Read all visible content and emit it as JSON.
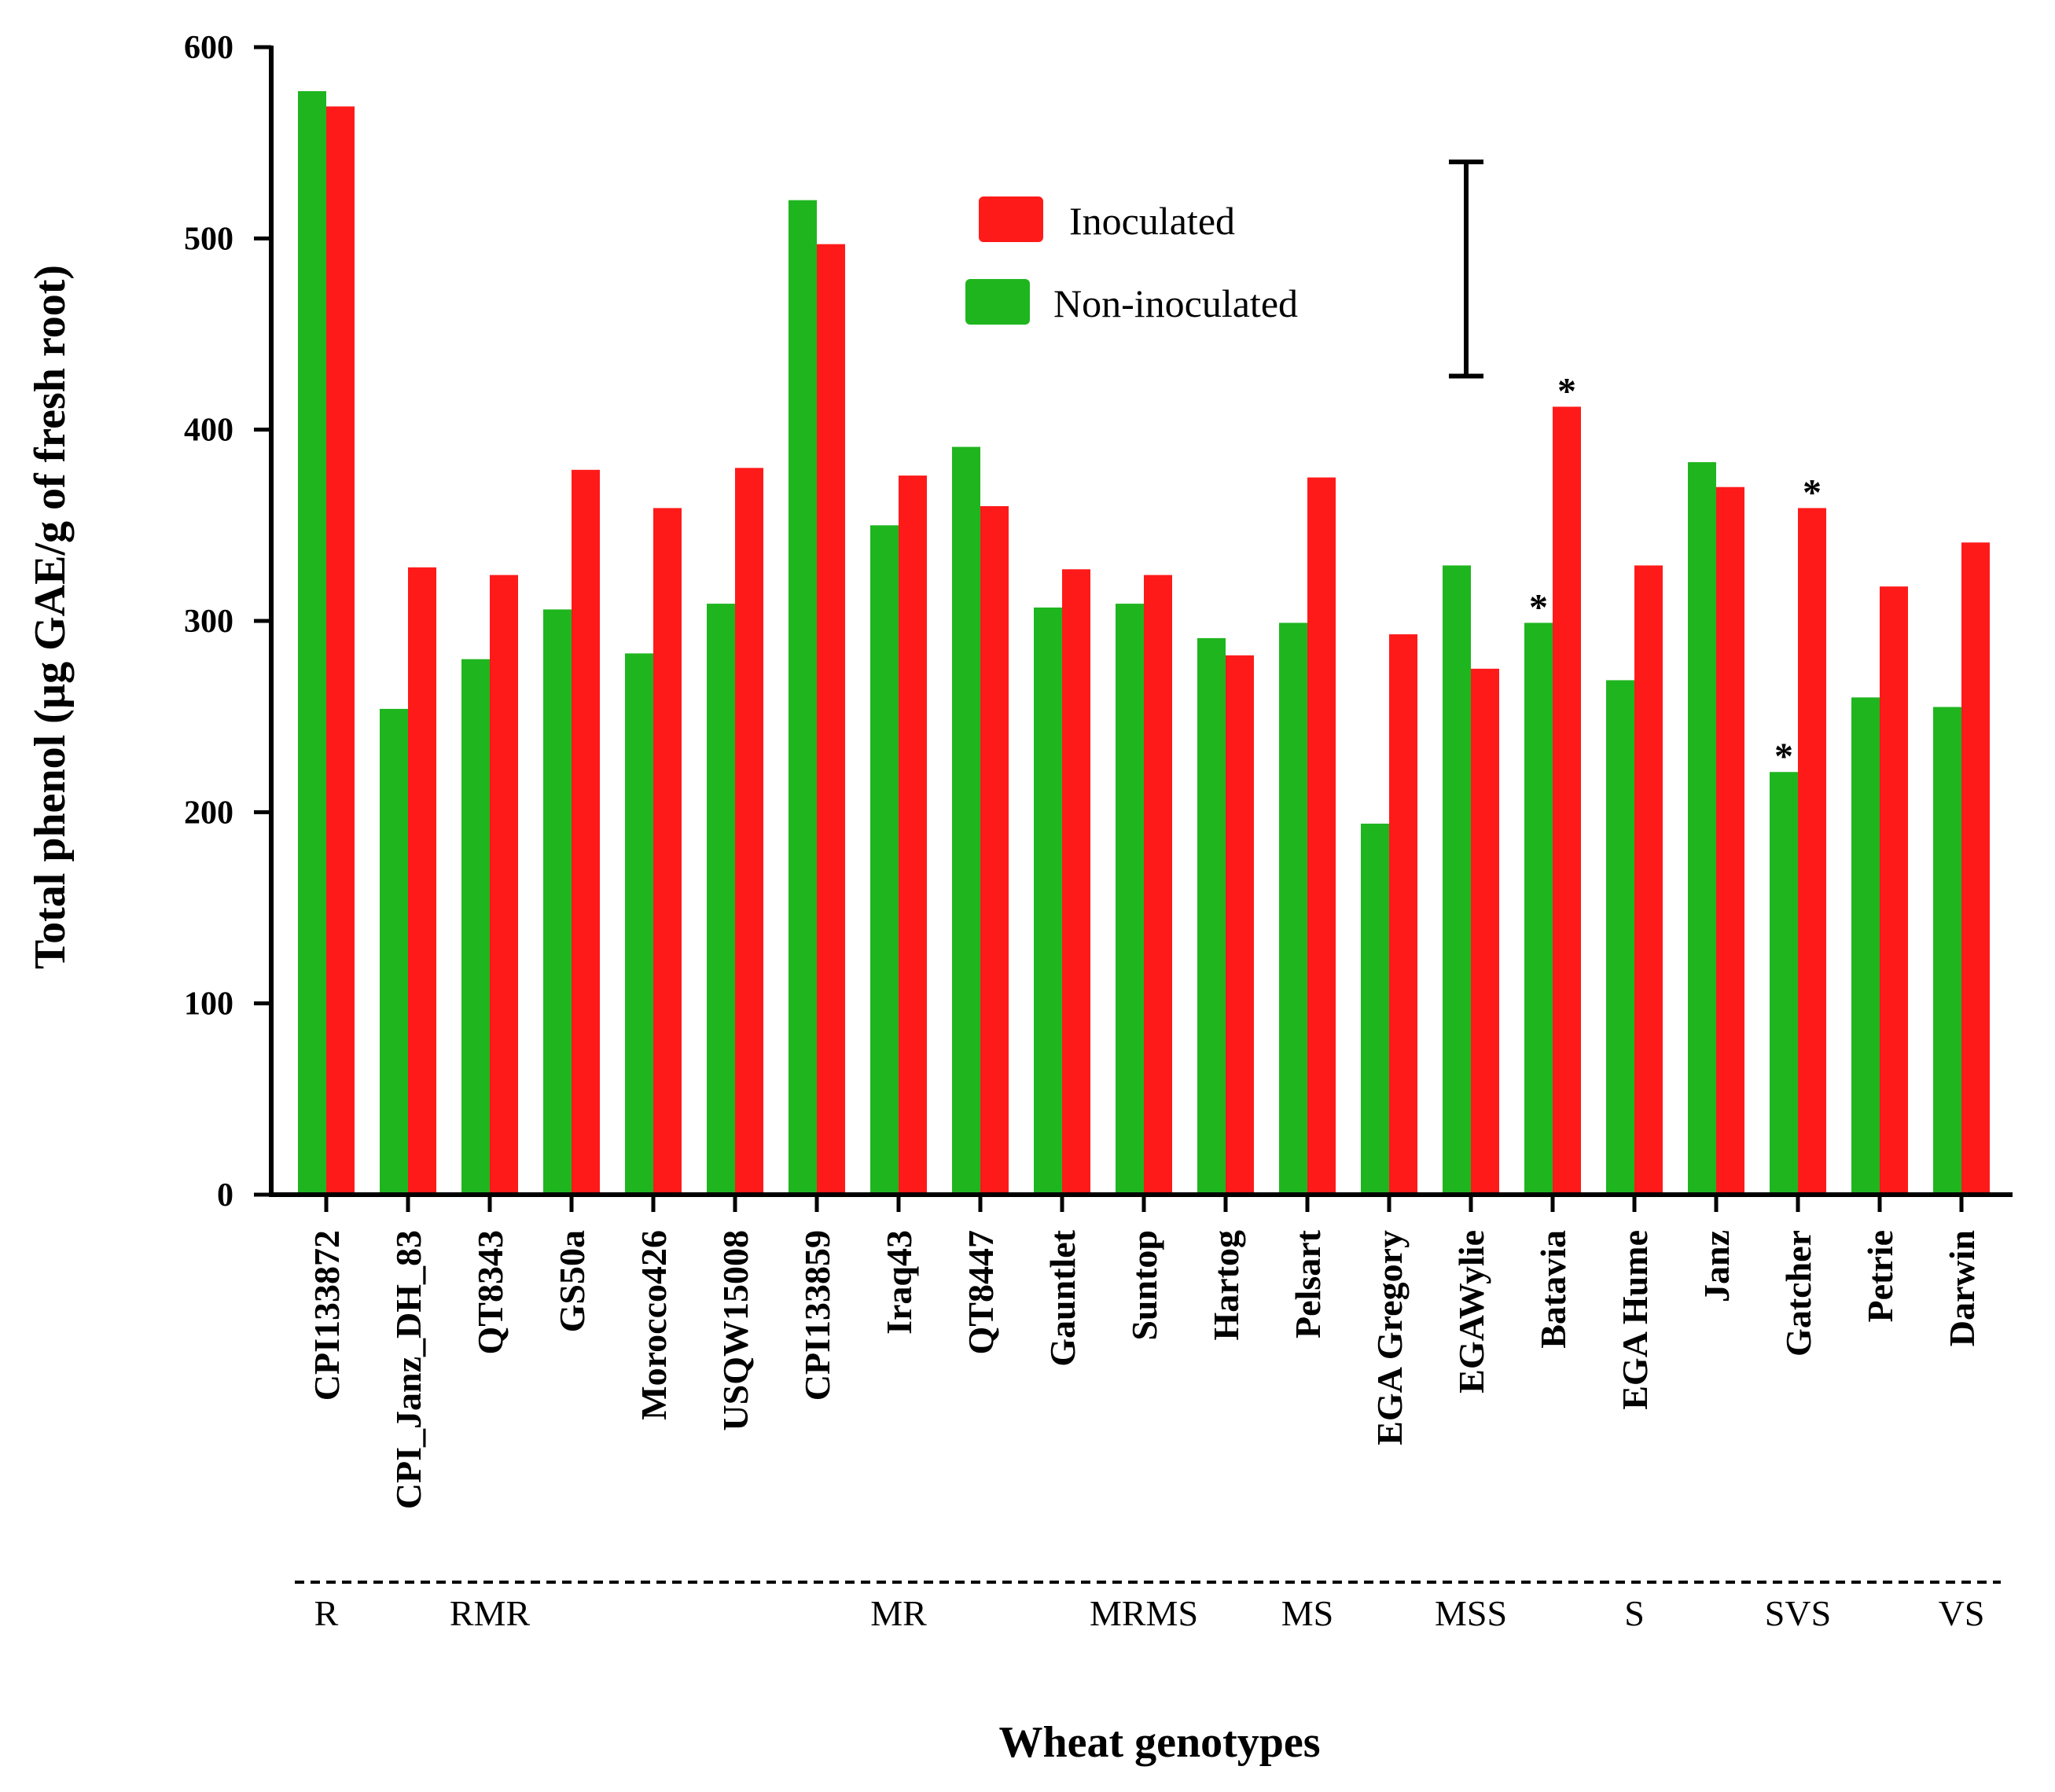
{
  "chart_data": {
    "type": "bar",
    "title": "",
    "xlabel": "Wheat genotypes",
    "ylabel": "Total phenol (µg GAE/g of fresh root)",
    "ylim": [
      0,
      600
    ],
    "yticks": [
      "0",
      "100",
      "200",
      "300",
      "400",
      "500",
      "600"
    ],
    "categories": [
      "CPI133872",
      "CPI_Janz_DH_83",
      "QT8343",
      "GS50a",
      "Morocco426",
      "USQW15008",
      "CPI133859",
      "Iraq43",
      "QT8447",
      "Gauntlet",
      "Suntop",
      "Hartog",
      "Pelsart",
      "EGA Gregory",
      "EGAWylie",
      "Batavia",
      "EGA Hume",
      "Janz",
      "Gatcher",
      "Petrie",
      "Darwin"
    ],
    "series": [
      {
        "name": "Non-inoculated",
        "color": "#1fb51f",
        "values": [
          577,
          254,
          280,
          306,
          283,
          309,
          520,
          350,
          391,
          307,
          309,
          291,
          299,
          194,
          329,
          299,
          269,
          383,
          221,
          260,
          255
        ]
      },
      {
        "name": "Inoculated",
        "color": "#ff1a1a",
        "values": [
          569,
          328,
          324,
          379,
          359,
          380,
          497,
          376,
          360,
          327,
          324,
          282,
          375,
          293,
          275,
          412,
          329,
          370,
          359,
          318,
          341
        ]
      }
    ],
    "legend": [
      "Inoculated",
      "Non-inoculated"
    ],
    "legend_position": "top-center",
    "error_bar": {
      "low": 428,
      "high": 540
    },
    "significance_marks": [
      {
        "category": "Batavia",
        "series": "Non-inoculated",
        "label": "*"
      },
      {
        "category": "Batavia",
        "series": "Inoculated",
        "label": "*"
      },
      {
        "category": "Gatcher",
        "series": "Non-inoculated",
        "label": "*"
      },
      {
        "category": "Gatcher",
        "series": "Inoculated",
        "label": "*"
      }
    ],
    "resistance_groups": [
      {
        "label": "R",
        "category": "CPI133872"
      },
      {
        "label": "RMR",
        "category": "QT8343"
      },
      {
        "label": "MR",
        "category": "Iraq43"
      },
      {
        "label": "MRMS",
        "category": "Suntop"
      },
      {
        "label": "MS",
        "category": "Pelsart"
      },
      {
        "label": "MSS",
        "category": "EGAWylie"
      },
      {
        "label": "S",
        "category": "EGA Hume"
      },
      {
        "label": "SVS",
        "category": "Gatcher"
      },
      {
        "label": "VS",
        "category": "Darwin"
      }
    ]
  }
}
